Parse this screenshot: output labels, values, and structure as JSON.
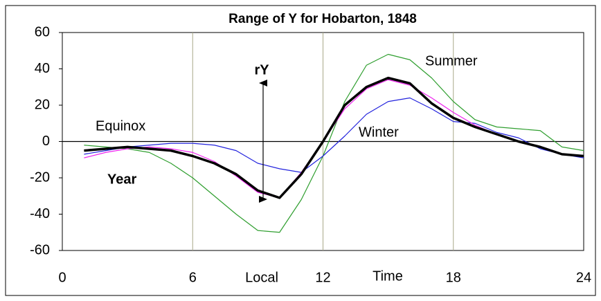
{
  "chart_data": {
    "type": "line",
    "title": "Range of Y for Hobarton, 1848",
    "x": [
      1,
      2,
      3,
      4,
      5,
      6,
      7,
      8,
      9,
      10,
      11,
      12,
      13,
      14,
      15,
      16,
      17,
      18,
      19,
      20,
      21,
      22,
      23,
      24
    ],
    "series": [
      {
        "name": "Summer",
        "color": "#2e9e2e",
        "width": 1.2,
        "values": [
          -2,
          -3,
          -4,
          -6,
          -12,
          -20,
          -30,
          -40,
          -49,
          -50,
          -32,
          -8,
          22,
          42,
          48,
          45,
          35,
          22,
          12,
          8,
          7,
          6,
          -3,
          -5
        ]
      },
      {
        "name": "Winter",
        "color": "#2222dd",
        "width": 1.2,
        "values": [
          -7,
          -5,
          -3,
          -2,
          -1,
          -1,
          -2,
          -5,
          -12,
          -15,
          -17,
          -8,
          3,
          15,
          22,
          24,
          18,
          11,
          10,
          5,
          2,
          -4,
          -7,
          -9
        ]
      },
      {
        "name": "Equinox",
        "color": "#ee22ee",
        "width": 1.2,
        "values": [
          -9,
          -6,
          -4,
          -3,
          -4,
          -6,
          -11,
          -19,
          -28,
          -31,
          -17,
          0,
          18,
          29,
          34,
          31,
          24,
          16,
          9,
          4,
          0,
          -3,
          -7,
          -8
        ]
      },
      {
        "name": "Year",
        "color": "#000000",
        "width": 3.5,
        "values": [
          -5,
          -4,
          -3,
          -4,
          -5,
          -8,
          -12,
          -18,
          -27,
          -31,
          -18,
          0,
          20,
          30,
          35,
          32,
          21,
          13,
          8,
          4,
          0,
          -3,
          -7,
          -8
        ]
      }
    ],
    "xlim": [
      0,
      24
    ],
    "xticks": [
      0,
      6,
      12,
      18,
      24
    ],
    "ylim": [
      -60,
      60
    ],
    "yticks": [
      -60,
      -40,
      -20,
      0,
      20,
      40,
      60
    ],
    "grid": true,
    "annotations": [
      "Local",
      "Time",
      "rY"
    ]
  }
}
